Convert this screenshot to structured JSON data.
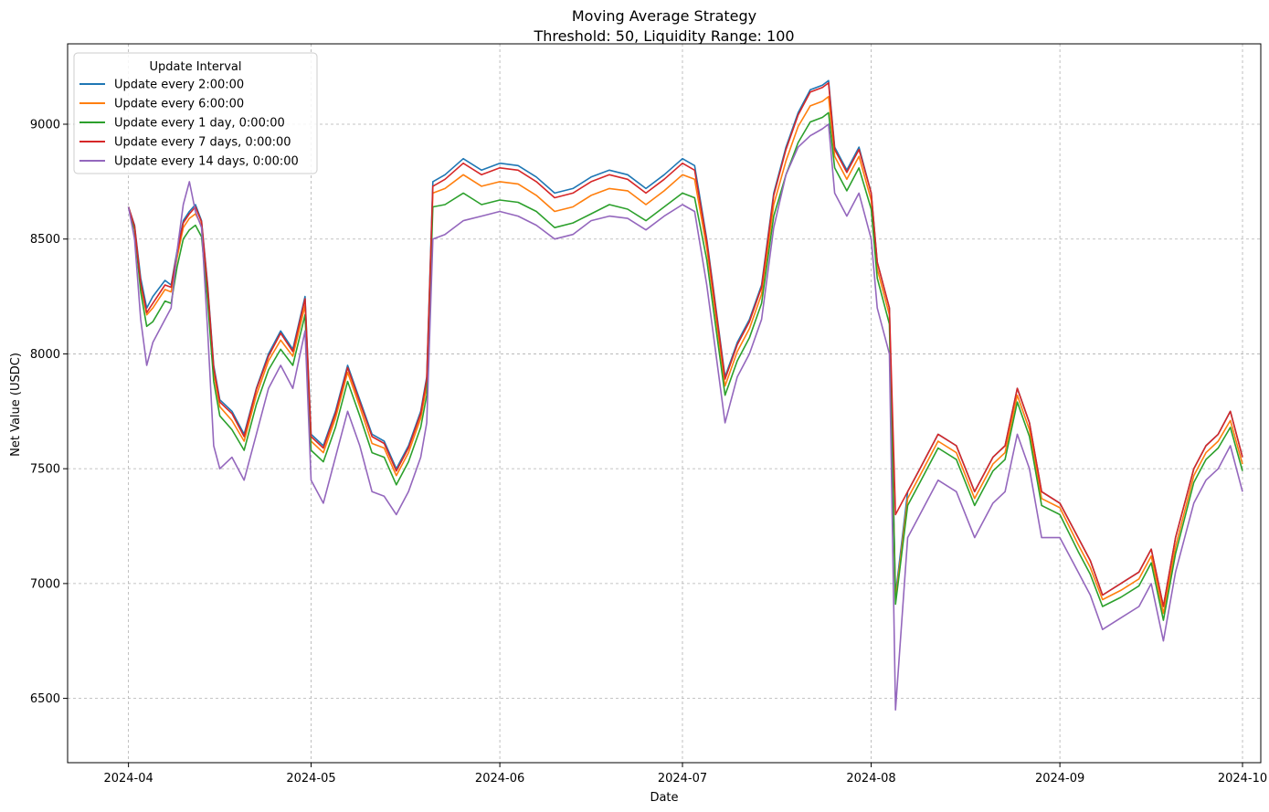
{
  "chart_data": {
    "type": "line",
    "title": "Moving Average Strategy",
    "subtitle": "Threshold: 50, Liquidity Range: 100",
    "xlabel": "Date",
    "ylabel": "Net Value (USDC)",
    "x_range": [
      "2024-03-22",
      "2024-10-04"
    ],
    "y_range": [
      6220,
      9350
    ],
    "x_ticks": [
      "2024-04",
      "2024-05",
      "2024-06",
      "2024-07",
      "2024-08",
      "2024-09",
      "2024-10"
    ],
    "y_ticks": [
      6500,
      7000,
      7500,
      8000,
      8500,
      9000
    ],
    "grid": true,
    "legend": {
      "title": "Update Interval",
      "placement": "top-left"
    },
    "x": [
      "2024-04-01",
      "2024-04-02",
      "2024-04-03",
      "2024-04-04",
      "2024-04-05",
      "2024-04-07",
      "2024-04-08",
      "2024-04-09",
      "2024-04-10",
      "2024-04-11",
      "2024-04-12",
      "2024-04-13",
      "2024-04-14",
      "2024-04-15",
      "2024-04-16",
      "2024-04-18",
      "2024-04-20",
      "2024-04-22",
      "2024-04-24",
      "2024-04-26",
      "2024-04-28",
      "2024-04-30",
      "2024-05-01",
      "2024-05-03",
      "2024-05-05",
      "2024-05-07",
      "2024-05-09",
      "2024-05-11",
      "2024-05-13",
      "2024-05-15",
      "2024-05-17",
      "2024-05-19",
      "2024-05-20",
      "2024-05-21",
      "2024-05-23",
      "2024-05-26",
      "2024-05-29",
      "2024-06-01",
      "2024-06-04",
      "2024-06-07",
      "2024-06-10",
      "2024-06-13",
      "2024-06-16",
      "2024-06-19",
      "2024-06-22",
      "2024-06-25",
      "2024-06-28",
      "2024-07-01",
      "2024-07-03",
      "2024-07-05",
      "2024-07-06",
      "2024-07-08",
      "2024-07-10",
      "2024-07-12",
      "2024-07-14",
      "2024-07-16",
      "2024-07-18",
      "2024-07-20",
      "2024-07-22",
      "2024-07-24",
      "2024-07-25",
      "2024-07-26",
      "2024-07-28",
      "2024-07-30",
      "2024-08-01",
      "2024-08-02",
      "2024-08-04",
      "2024-08-05",
      "2024-08-07",
      "2024-08-09",
      "2024-08-12",
      "2024-08-15",
      "2024-08-18",
      "2024-08-21",
      "2024-08-23",
      "2024-08-25",
      "2024-08-27",
      "2024-08-29",
      "2024-09-01",
      "2024-09-04",
      "2024-09-06",
      "2024-09-08",
      "2024-09-11",
      "2024-09-14",
      "2024-09-16",
      "2024-09-18",
      "2024-09-20",
      "2024-09-23",
      "2024-09-25",
      "2024-09-27",
      "2024-09-29",
      "2024-10-01"
    ],
    "series": [
      {
        "name": "Update every 2:00:00",
        "color": "#1f77b4",
        "values": [
          8640,
          8560,
          8330,
          8200,
          8250,
          8320,
          8300,
          8450,
          8580,
          8620,
          8650,
          8580,
          8300,
          7950,
          7800,
          7750,
          7650,
          7850,
          8000,
          8100,
          8020,
          8250,
          7650,
          7600,
          7750,
          7950,
          7800,
          7650,
          7620,
          7500,
          7600,
          7750,
          7900,
          8750,
          8780,
          8850,
          8800,
          8830,
          8820,
          8770,
          8700,
          8720,
          8770,
          8800,
          8780,
          8720,
          8780,
          8850,
          8820,
          8500,
          8300,
          7900,
          8050,
          8150,
          8300,
          8700,
          8900,
          9050,
          9150,
          9170,
          9190,
          8900,
          8800,
          8900,
          8700,
          8400,
          8200,
          6950,
          7400,
          7500,
          7650,
          7600,
          7400,
          7550,
          7600,
          7850,
          7700,
          7400,
          7350,
          7200,
          7100,
          6950,
          7000,
          7050,
          7150,
          6900,
          7200,
          7500,
          7600,
          7650,
          7750,
          7550
        ]
      },
      {
        "name": "Update every 6:00:00",
        "color": "#ff7f0e",
        "values": [
          8640,
          8550,
          8300,
          8170,
          8200,
          8280,
          8270,
          8420,
          8550,
          8590,
          8610,
          8560,
          8270,
          7920,
          7770,
          7710,
          7620,
          7820,
          7970,
          8060,
          7990,
          8210,
          7620,
          7570,
          7720,
          7920,
          7770,
          7610,
          7590,
          7470,
          7570,
          7720,
          7860,
          8700,
          8720,
          8780,
          8730,
          8750,
          8740,
          8690,
          8620,
          8640,
          8690,
          8720,
          8710,
          8650,
          8710,
          8780,
          8760,
          8460,
          8260,
          7860,
          8010,
          8110,
          8260,
          8650,
          8840,
          8990,
          9080,
          9100,
          9120,
          8860,
          8760,
          8860,
          8670,
          8370,
          8170,
          6930,
          7370,
          7470,
          7620,
          7570,
          7370,
          7520,
          7570,
          7820,
          7670,
          7370,
          7330,
          7170,
          7070,
          6930,
          6970,
          7020,
          7120,
          6870,
          7160,
          7470,
          7570,
          7620,
          7710,
          7520
        ]
      },
      {
        "name": "Update every 1 day, 0:00:00",
        "color": "#2ca02c",
        "values": [
          8640,
          8540,
          8270,
          8120,
          8140,
          8230,
          8220,
          8380,
          8500,
          8540,
          8560,
          8510,
          8230,
          7880,
          7730,
          7670,
          7580,
          7780,
          7930,
          8020,
          7950,
          8170,
          7580,
          7530,
          7680,
          7880,
          7730,
          7570,
          7550,
          7430,
          7530,
          7680,
          7820,
          8640,
          8650,
          8700,
          8650,
          8670,
          8660,
          8620,
          8550,
          8570,
          8610,
          8650,
          8630,
          8580,
          8640,
          8700,
          8680,
          8410,
          8210,
          7820,
          7970,
          8070,
          8220,
          8600,
          8780,
          8920,
          9010,
          9030,
          9050,
          8810,
          8710,
          8810,
          8630,
          8330,
          8130,
          6910,
          7340,
          7440,
          7590,
          7540,
          7340,
          7490,
          7540,
          7790,
          7640,
          7340,
          7300,
          7140,
          7040,
          6900,
          6940,
          6990,
          7090,
          6840,
          7130,
          7440,
          7540,
          7590,
          7680,
          7490
        ]
      },
      {
        "name": "Update every 7 days, 0:00:00",
        "color": "#d62728",
        "values": [
          8640,
          8555,
          8310,
          8180,
          8220,
          8300,
          8290,
          8440,
          8570,
          8610,
          8640,
          8575,
          8290,
          7940,
          7790,
          7740,
          7640,
          7845,
          7990,
          8090,
          8010,
          8240,
          7640,
          7590,
          7740,
          7940,
          7790,
          7640,
          7610,
          7490,
          7590,
          7740,
          7890,
          8730,
          8760,
          8830,
          8780,
          8810,
          8800,
          8750,
          8680,
          8700,
          8750,
          8780,
          8760,
          8700,
          8760,
          8830,
          8800,
          8490,
          8290,
          7890,
          8040,
          8140,
          8290,
          8690,
          8890,
          9040,
          9140,
          9160,
          9180,
          8890,
          8790,
          8890,
          8700,
          8400,
          8200,
          7300,
          7400,
          7500,
          7650,
          7600,
          7400,
          7550,
          7600,
          7850,
          7700,
          7400,
          7350,
          7200,
          7100,
          6950,
          7000,
          7050,
          7150,
          6900,
          7200,
          7500,
          7600,
          7650,
          7750,
          7550
        ]
      },
      {
        "name": "Update every 14 days, 0:00:00",
        "color": "#9467bd",
        "values": [
          8640,
          8500,
          8150,
          7950,
          8050,
          8150,
          8200,
          8450,
          8650,
          8750,
          8620,
          8550,
          8100,
          7600,
          7500,
          7550,
          7450,
          7650,
          7850,
          7950,
          7850,
          8100,
          7450,
          7350,
          7550,
          7750,
          7600,
          7400,
          7380,
          7300,
          7400,
          7550,
          7700,
          8500,
          8520,
          8580,
          8600,
          8620,
          8600,
          8560,
          8500,
          8520,
          8580,
          8600,
          8590,
          8540,
          8600,
          8650,
          8620,
          8300,
          8100,
          7700,
          7900,
          8000,
          8150,
          8550,
          8780,
          8900,
          8950,
          8980,
          9000,
          8700,
          8600,
          8700,
          8500,
          8200,
          8000,
          6450,
          7200,
          7300,
          7450,
          7400,
          7200,
          7350,
          7400,
          7650,
          7500,
          7200,
          7200,
          7050,
          6950,
          6800,
          6850,
          6900,
          7000,
          6750,
          7050,
          7350,
          7450,
          7500,
          7600,
          7400
        ]
      }
    ]
  }
}
